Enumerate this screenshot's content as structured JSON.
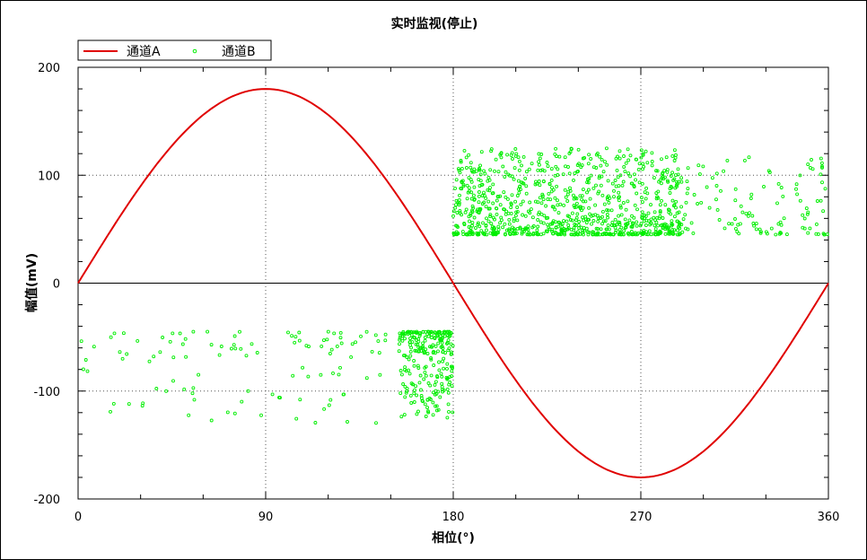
{
  "chart_data": {
    "type": "scatter",
    "title": "实时监视(停止)",
    "xlabel": "相位(°)",
    "ylabel": "幅值(mV)",
    "xlim": [
      0,
      360
    ],
    "ylim": [
      -200,
      200
    ],
    "xticks": [
      "0",
      "90",
      "180",
      "270",
      "360"
    ],
    "yticks": [
      "200",
      "100",
      "0",
      "-100",
      "-200"
    ],
    "xtick_values": [
      0,
      90,
      180,
      270,
      360
    ],
    "ytick_values": [
      200,
      100,
      0,
      -100,
      -200
    ],
    "grid": "dotted",
    "legend_position": "top-left",
    "series": [
      {
        "name": "通道A",
        "type": "line",
        "color": "#e00000",
        "x": [
          0,
          15,
          30,
          45,
          60,
          75,
          90,
          105,
          120,
          135,
          150,
          165,
          180,
          195,
          210,
          225,
          240,
          255,
          270,
          285,
          300,
          315,
          330,
          345,
          360
        ],
        "y": [
          0,
          46.6,
          90,
          127.3,
          155.9,
          173.9,
          180,
          173.9,
          155.9,
          127.3,
          90,
          46.6,
          0,
          -46.6,
          -90,
          -127.3,
          -155.9,
          -173.9,
          -180,
          -173.9,
          -155.9,
          -127.3,
          -90,
          -46.6,
          0
        ]
      },
      {
        "name": "通道B",
        "type": "scatter",
        "color": "#00ee00",
        "clusters": [
          {
            "x_range": [
              0,
              180
            ],
            "y_range": [
              -130,
              -45
            ],
            "count": 120
          },
          {
            "x_range": [
              154,
              180
            ],
            "y_range": [
              -125,
              -45
            ],
            "count": 240
          },
          {
            "x_range": [
              180,
              290
            ],
            "y_range": [
              45,
              125
            ],
            "count": 900
          },
          {
            "x_range": [
              290,
              360
            ],
            "y_range": [
              45,
              120
            ],
            "count": 110
          }
        ]
      }
    ]
  }
}
